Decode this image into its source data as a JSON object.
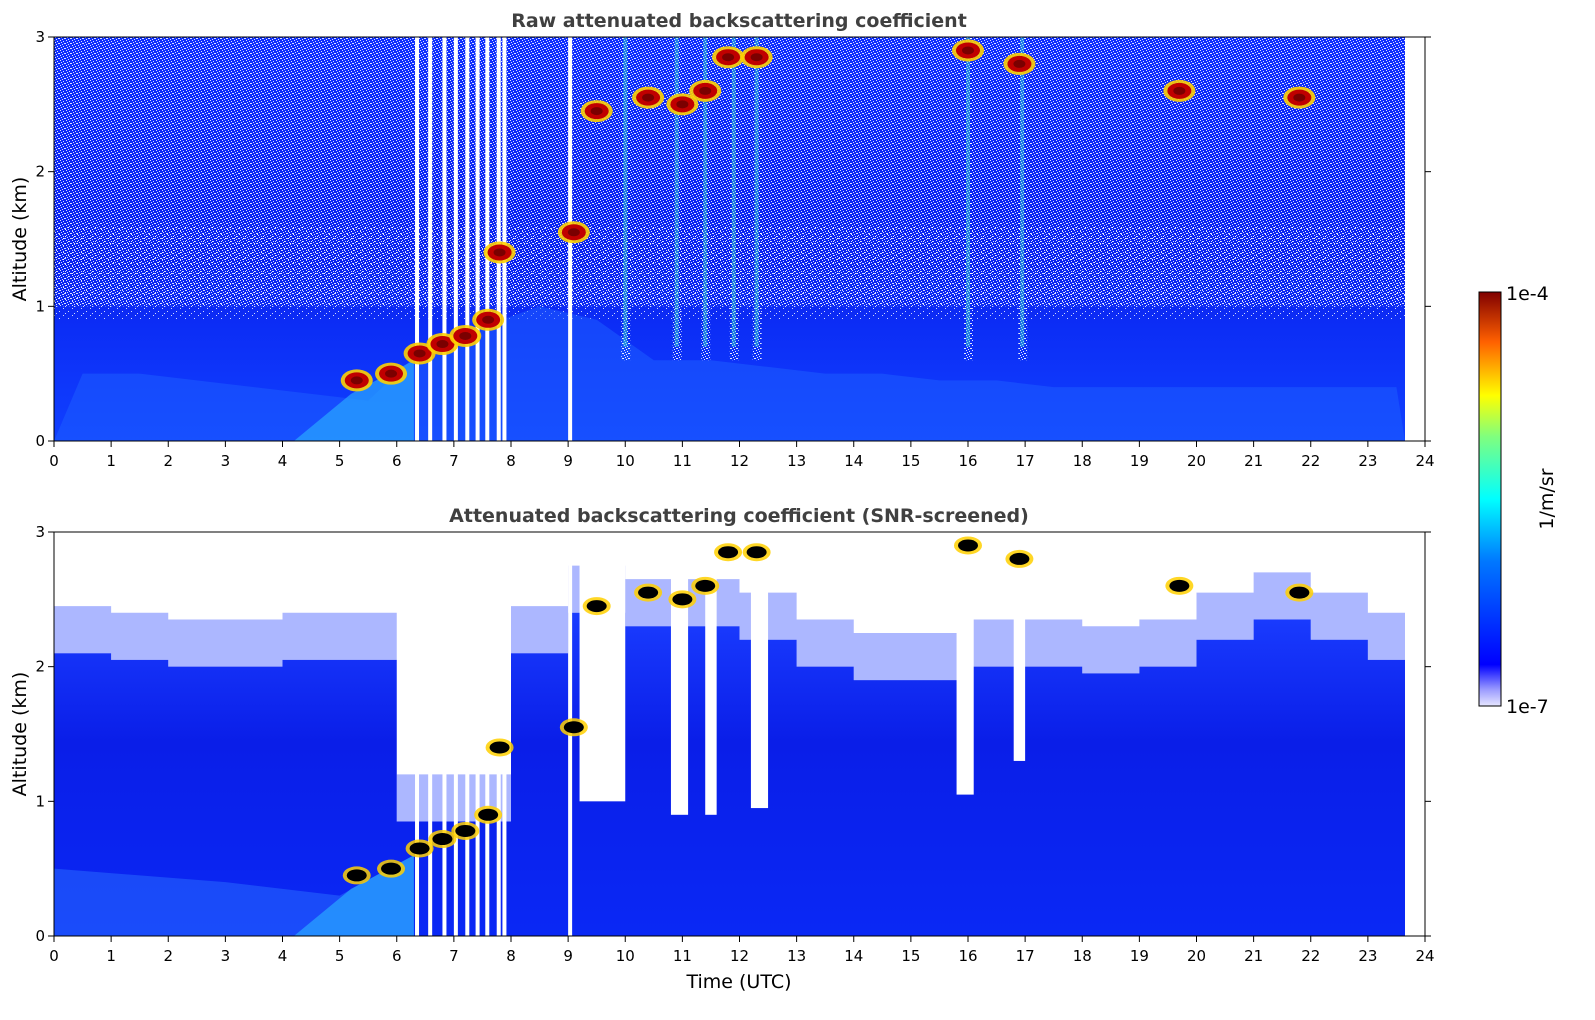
{
  "chart_data": [
    {
      "type": "heatmap",
      "title": "Raw attenuated backscattering coefficient",
      "xlabel": "",
      "ylabel": "Altitude (km)",
      "xlim": [
        0,
        24
      ],
      "ylim": [
        0,
        3
      ],
      "x_ticks": [
        "0",
        "1",
        "2",
        "3",
        "4",
        "5",
        "6",
        "7",
        "8",
        "9",
        "10",
        "11",
        "12",
        "13",
        "14",
        "15",
        "16",
        "17",
        "18",
        "19",
        "20",
        "21",
        "22",
        "23",
        "24"
      ],
      "y_ticks": [
        "0",
        "1",
        "2",
        "3"
      ],
      "data_end_time": 23.65,
      "background_layer_top_km": [
        0.5,
        0.5,
        0.45,
        0.4,
        0.35,
        0.3,
        0.7,
        0.85,
        1.0,
        0.9,
        0.6,
        0.6,
        0.55,
        0.5,
        0.5,
        0.45,
        0.45,
        0.4,
        0.4,
        0.4,
        0.4,
        0.4,
        0.4,
        0.4
      ],
      "clouds": [
        {
          "t": 5.3,
          "alt": 0.45
        },
        {
          "t": 5.9,
          "alt": 0.5
        },
        {
          "t": 6.4,
          "alt": 0.65
        },
        {
          "t": 6.8,
          "alt": 0.72
        },
        {
          "t": 7.2,
          "alt": 0.78
        },
        {
          "t": 7.6,
          "alt": 0.9
        },
        {
          "t": 7.8,
          "alt": 1.4
        },
        {
          "t": 9.1,
          "alt": 1.55
        },
        {
          "t": 9.5,
          "alt": 2.45
        },
        {
          "t": 10.4,
          "alt": 2.55
        },
        {
          "t": 11.0,
          "alt": 2.5
        },
        {
          "t": 11.4,
          "alt": 2.6
        },
        {
          "t": 11.8,
          "alt": 2.85
        },
        {
          "t": 12.3,
          "alt": 2.85
        },
        {
          "t": 16.0,
          "alt": 2.9
        },
        {
          "t": 16.9,
          "alt": 2.8
        },
        {
          "t": 19.7,
          "alt": 2.6
        },
        {
          "t": 21.8,
          "alt": 2.55
        }
      ]
    },
    {
      "type": "heatmap",
      "title": "Attenuated backscattering coefficient (SNR-screened)",
      "xlabel": "Time (UTC)",
      "ylabel": "Altitude (km)",
      "xlim": [
        0,
        24
      ],
      "ylim": [
        0,
        3
      ],
      "x_ticks": [
        "0",
        "1",
        "2",
        "3",
        "4",
        "5",
        "6",
        "7",
        "8",
        "9",
        "10",
        "11",
        "12",
        "13",
        "14",
        "15",
        "16",
        "17",
        "18",
        "19",
        "20",
        "21",
        "22",
        "23",
        "24"
      ],
      "y_ticks": [
        "0",
        "1",
        "2",
        "3"
      ],
      "data_end_time": 23.65,
      "snr_top_km": [
        2.1,
        2.05,
        2.0,
        2.0,
        2.05,
        2.05,
        0.85,
        0.85,
        2.1,
        2.4,
        2.3,
        2.3,
        2.2,
        2.0,
        1.9,
        1.9,
        2.0,
        2.0,
        1.95,
        2.0,
        2.2,
        2.35,
        2.2,
        2.05
      ],
      "clear_gaps": [
        {
          "t0": 9.2,
          "t1": 10.0,
          "bottom_km": 1.0
        },
        {
          "t0": 10.8,
          "t1": 11.1,
          "bottom_km": 0.9
        },
        {
          "t0": 11.4,
          "t1": 11.6,
          "bottom_km": 0.9
        },
        {
          "t0": 12.2,
          "t1": 12.5,
          "bottom_km": 0.95
        },
        {
          "t0": 15.8,
          "t1": 16.1,
          "bottom_km": 1.05
        },
        {
          "t0": 16.8,
          "t1": 17.0,
          "bottom_km": 1.3
        }
      ]
    }
  ],
  "colorbar": {
    "label": "1/m/sr",
    "max_label": "1e-4",
    "min_label": "1e-7",
    "colormap": "jet"
  }
}
